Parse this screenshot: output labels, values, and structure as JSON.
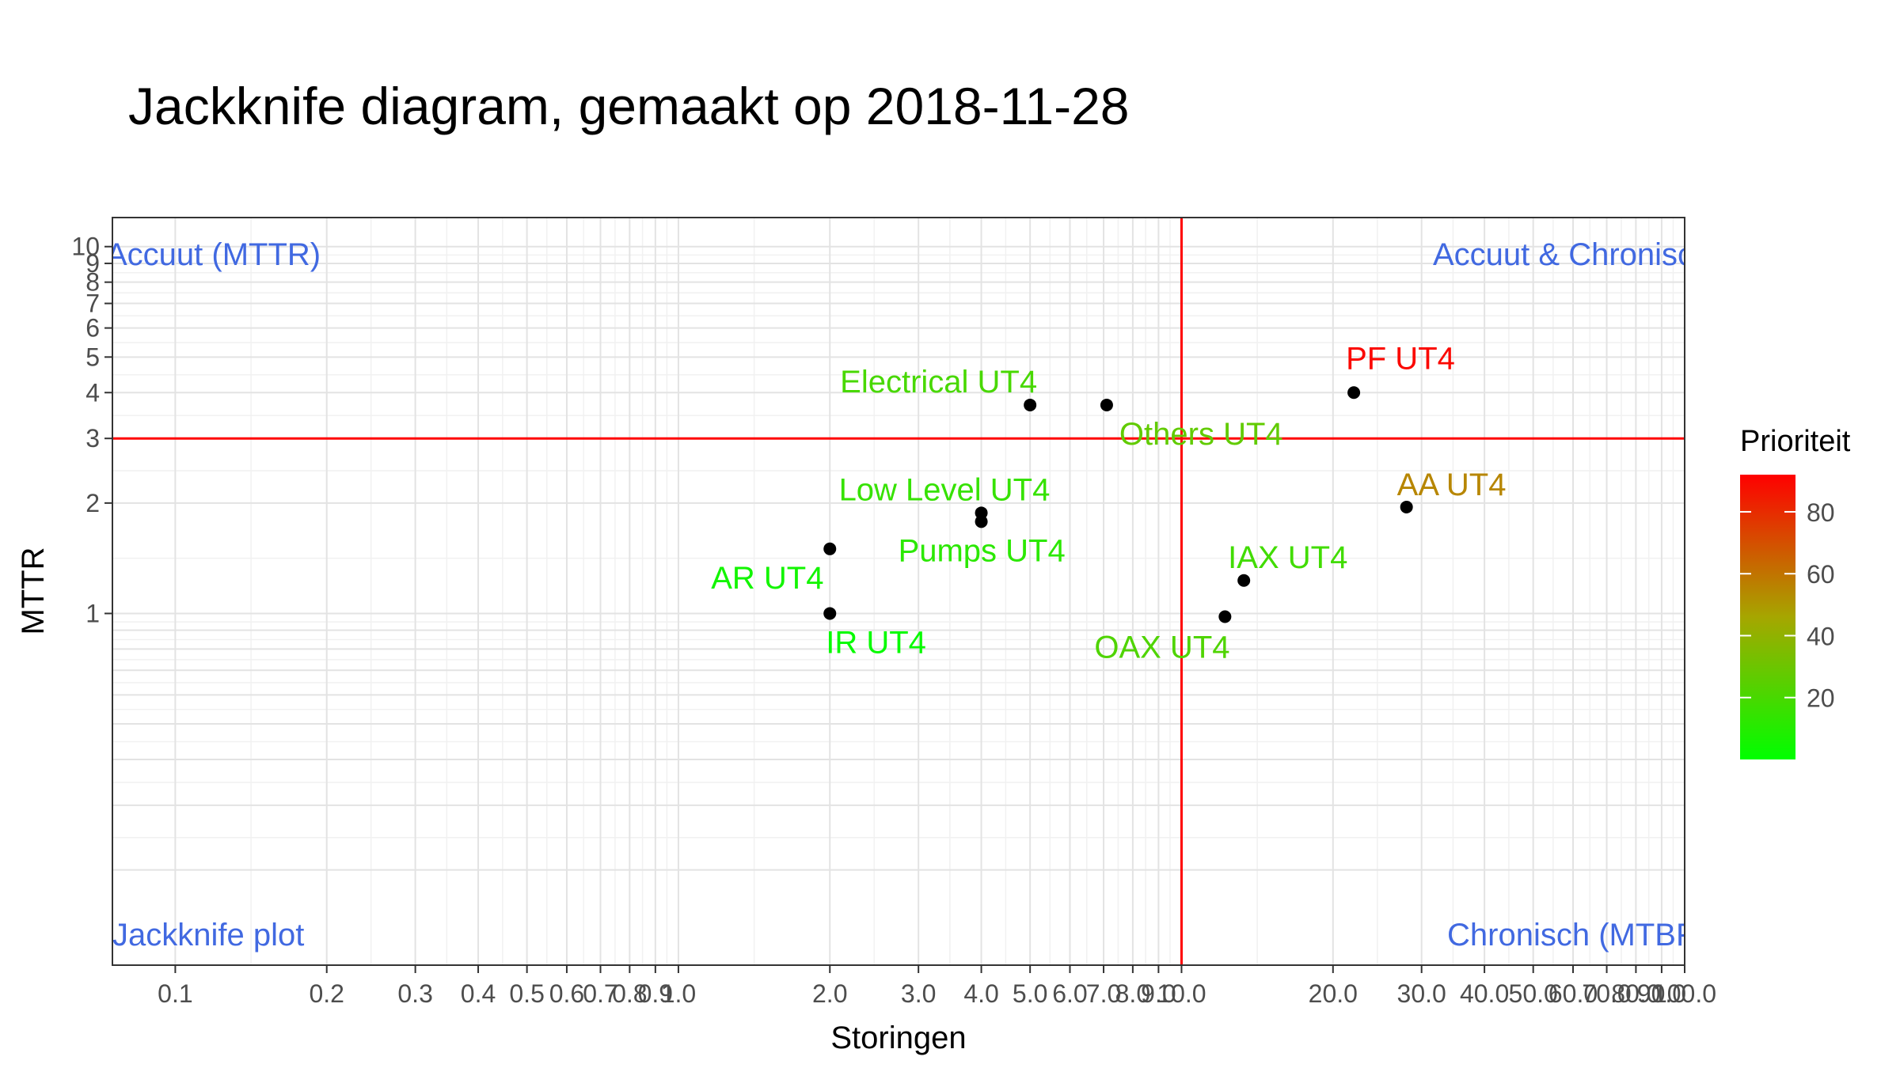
{
  "chart_data": {
    "type": "scatter",
    "title": "Jackknife diagram, gemaakt op 2018-11-28",
    "xlabel": "Storingen",
    "ylabel": "MTTR",
    "x_scale": "log",
    "y_scale": "log",
    "xlim": [
      0.075,
      100
    ],
    "ylim": [
      0.11,
      12
    ],
    "grid": true,
    "x_ticks": [
      0.1,
      0.2,
      0.3,
      0.4,
      0.5,
      0.6,
      0.7,
      0.8,
      0.9,
      1.0,
      2.0,
      3.0,
      4.0,
      5.0,
      6.0,
      7.0,
      8.0,
      9.0,
      10.0,
      20.0,
      30.0,
      40.0,
      50.0,
      60.0,
      70.0,
      80.0,
      90.0,
      100.0
    ],
    "x_tick_labels": [
      "0.1",
      "0.2",
      "0.3",
      "0.4",
      "0.5",
      "0.6",
      "0.7",
      "0.8",
      "0.9",
      "1.0",
      "2.0",
      "3.0",
      "4.0",
      "5.0",
      "6.0",
      "7.0",
      "8.0",
      "9.0",
      "10.0",
      "20.0",
      "30.0",
      "40.0",
      "50.0",
      "60.0",
      "70.0",
      "80.0",
      "90.0",
      "100.0"
    ],
    "y_ticks": [
      1,
      2,
      3,
      4,
      5,
      6,
      7,
      8,
      9,
      10
    ],
    "y_tick_labels": [
      "1",
      "2",
      "3",
      "4",
      "5",
      "6",
      "7",
      "8",
      "9",
      "10"
    ],
    "reference_lines": {
      "x": 10,
      "y": 3,
      "color": "#ff0000"
    },
    "quadrant_labels": {
      "top_left": "Accuut (MTTR)",
      "top_right": "Accuut & Chronisch",
      "bottom_left": "Jackknife plot",
      "bottom_right": "Chronisch (MTBF)",
      "color": "#4169e1"
    },
    "points": [
      {
        "label": "PF UT4",
        "x": 22,
        "y": 4.0,
        "prioriteit": 90
      },
      {
        "label": "AA UT4",
        "x": 28,
        "y": 1.95,
        "prioriteit": 55
      },
      {
        "label": "Electrical UT4",
        "x": 5,
        "y": 3.7,
        "prioriteit": 20
      },
      {
        "label": "Others UT4",
        "x": 7.1,
        "y": 3.7,
        "prioriteit": 27
      },
      {
        "label": "Low Level UT4",
        "x": 4,
        "y": 1.88,
        "prioriteit": 15
      },
      {
        "label": "Pumps UT4",
        "x": 4,
        "y": 1.78,
        "prioriteit": 12
      },
      {
        "label": "AR UT4",
        "x": 2,
        "y": 1.5,
        "prioriteit": 5
      },
      {
        "label": "IR UT4",
        "x": 2,
        "y": 1.0,
        "prioriteit": 2
      },
      {
        "label": "IAX UT4",
        "x": 13.3,
        "y": 1.23,
        "prioriteit": 18
      },
      {
        "label": "OAX UT4",
        "x": 12.2,
        "y": 0.98,
        "prioriteit": 22
      }
    ],
    "point_color": "#000000",
    "legend": {
      "title": "Prioriteit",
      "placement": "right",
      "range": [
        0,
        92
      ],
      "ticks": [
        20,
        40,
        60,
        80
      ],
      "tick_labels": [
        "20",
        "40",
        "60",
        "80"
      ],
      "low_color": "#00ff00",
      "high_color": "#ff0000"
    }
  }
}
